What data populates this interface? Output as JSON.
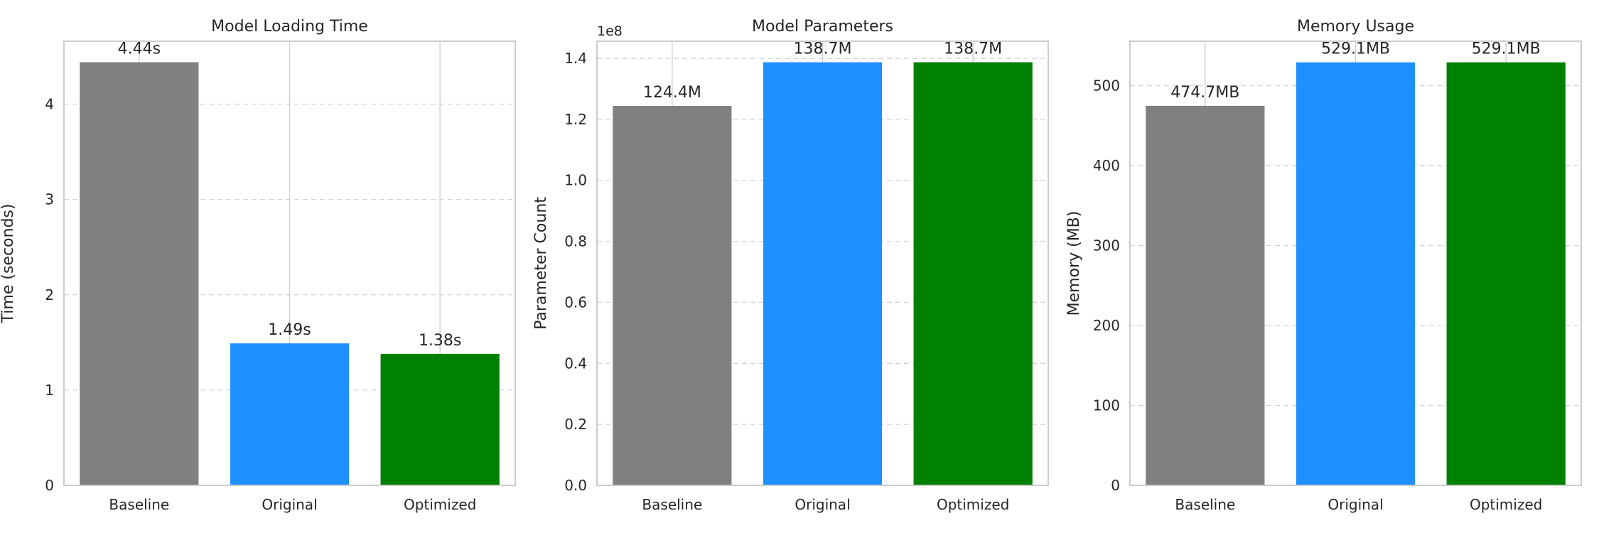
{
  "chart_data": [
    {
      "type": "bar",
      "title": "Model Loading Time",
      "xlabel": "",
      "ylabel": "Time (seconds)",
      "categories": [
        "Baseline",
        "Original",
        "Optimized"
      ],
      "values": [
        4.44,
        1.49,
        1.38
      ],
      "bar_labels": [
        "4.44s",
        "1.49s",
        "1.38s"
      ],
      "colors": [
        "#808080",
        "#1e90ff",
        "#008000"
      ],
      "ylim": [
        0,
        4.66
      ],
      "yticks": [
        0,
        1,
        2,
        3,
        4
      ],
      "ytick_labels": [
        "0",
        "1",
        "2",
        "3",
        "4"
      ],
      "offset_text": "",
      "grid": true
    },
    {
      "type": "bar",
      "title": "Model Parameters",
      "xlabel": "",
      "ylabel": "Parameter Count",
      "categories": [
        "Baseline",
        "Original",
        "Optimized"
      ],
      "values": [
        124400000,
        138700000,
        138700000
      ],
      "bar_labels": [
        "124.4M",
        "138.7M",
        "138.7M"
      ],
      "colors": [
        "#808080",
        "#1e90ff",
        "#008000"
      ],
      "ylim": [
        0,
        145600000
      ],
      "yticks": [
        0,
        20000000,
        40000000,
        60000000,
        80000000,
        100000000,
        120000000,
        140000000
      ],
      "ytick_labels": [
        "0.0",
        "0.2",
        "0.4",
        "0.6",
        "0.8",
        "1.0",
        "1.2",
        "1.4"
      ],
      "offset_text": "1e8",
      "grid": true
    },
    {
      "type": "bar",
      "title": "Memory Usage",
      "xlabel": "",
      "ylabel": "Memory (MB)",
      "categories": [
        "Baseline",
        "Original",
        "Optimized"
      ],
      "values": [
        474.7,
        529.1,
        529.1
      ],
      "bar_labels": [
        "474.7MB",
        "529.1MB",
        "529.1MB"
      ],
      "colors": [
        "#808080",
        "#1e90ff",
        "#008000"
      ],
      "ylim": [
        0,
        555.5
      ],
      "yticks": [
        0,
        100,
        200,
        300,
        400,
        500
      ],
      "ytick_labels": [
        "0",
        "100",
        "200",
        "300",
        "400",
        "500"
      ],
      "offset_text": "",
      "grid": true
    }
  ]
}
